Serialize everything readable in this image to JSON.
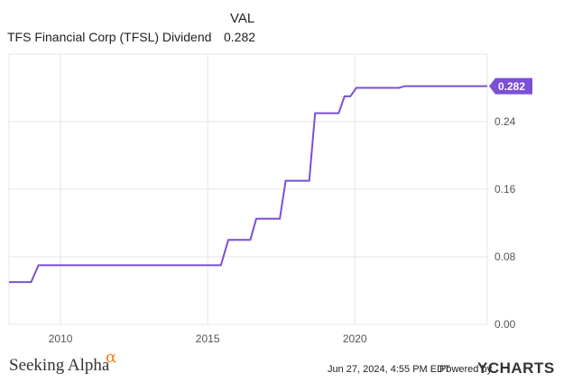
{
  "legend": {
    "header": "VAL",
    "series_name": "TFS Financial Corp (TFSL) Dividend",
    "series_value": "0.282"
  },
  "footer": {
    "brand": "Seeking Alpha",
    "brand_mark": "α",
    "timestamp": "Jun 27, 2024, 4:55 PM EDT",
    "powered_by": "Powered by",
    "logo": "YCHARTS"
  },
  "colors": {
    "series": "#7b4fd6",
    "grid": "#e6e6e6",
    "axis_text": "#555555"
  },
  "chart_data": {
    "type": "line",
    "title": "",
    "xlabel": "",
    "ylabel": "",
    "x_range": [
      2008.25,
      2024.5
    ],
    "ylim": [
      0,
      0.32
    ],
    "y_ticks": [
      {
        "value": 0,
        "label": "0.00"
      },
      {
        "value": 0.08,
        "label": "0.08"
      },
      {
        "value": 0.16,
        "label": "0.16"
      },
      {
        "value": 0.24,
        "label": "0.24"
      }
    ],
    "x_ticks": [
      {
        "value": 2010,
        "label": "2010"
      },
      {
        "value": 2015,
        "label": "2015"
      },
      {
        "value": 2020,
        "label": "2020"
      }
    ],
    "grid": true,
    "last_value_label": "0.282",
    "series": [
      {
        "name": "TFS Financial Corp (TFSL) Dividend",
        "points": [
          [
            2008.25,
            0.05
          ],
          [
            2009.0,
            0.05
          ],
          [
            2009.25,
            0.07
          ],
          [
            2015.45,
            0.07
          ],
          [
            2015.7,
            0.1
          ],
          [
            2016.45,
            0.1
          ],
          [
            2016.65,
            0.125
          ],
          [
            2017.45,
            0.125
          ],
          [
            2017.65,
            0.17
          ],
          [
            2018.45,
            0.17
          ],
          [
            2018.65,
            0.25
          ],
          [
            2019.45,
            0.25
          ],
          [
            2019.65,
            0.27
          ],
          [
            2019.85,
            0.27
          ],
          [
            2020.05,
            0.28
          ],
          [
            2021.5,
            0.28
          ],
          [
            2021.7,
            0.282
          ],
          [
            2024.5,
            0.282
          ]
        ]
      }
    ]
  }
}
